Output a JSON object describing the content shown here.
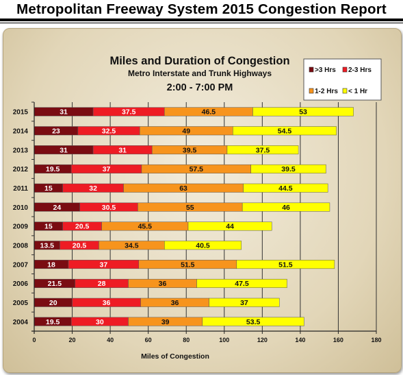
{
  "header": {
    "title": "Metropolitan Freeway System 2015 Congestion Report"
  },
  "chart_data": {
    "type": "bar",
    "orientation": "horizontal",
    "stacked": true,
    "title": "Miles and Duration of Congestion",
    "subtitle": "Metro Interstate and Trunk Highways",
    "subtitle2": "2:00 - 7:00 PM",
    "xlabel": "Miles of Congestion",
    "ylabel": "",
    "xlim": [
      0,
      180
    ],
    "xticks": [
      0,
      20,
      40,
      60,
      80,
      100,
      120,
      140,
      160,
      180
    ],
    "grid": true,
    "legend_placement": "top-right",
    "categories": [
      "2015",
      "2014",
      "2013",
      "2012",
      "2011",
      "2010",
      "2009",
      "2008",
      "2007",
      "2006",
      "2005",
      "2004"
    ],
    "series": [
      {
        "name": ">3 Hrs",
        "color": "#7a0c12",
        "values": [
          31,
          23,
          31,
          19.5,
          15,
          24,
          15,
          13.5,
          18,
          21.5,
          20,
          19.5
        ]
      },
      {
        "name": "2-3 Hrs",
        "color": "#ee1c24",
        "values": [
          37.5,
          32.5,
          31,
          37,
          32,
          30.5,
          20.5,
          20.5,
          37,
          28,
          36,
          30
        ]
      },
      {
        "name": "1-2 Hrs",
        "color": "#f7941d",
        "values": [
          46.5,
          49,
          39.5,
          57.5,
          63,
          55,
          45.5,
          34.5,
          51.5,
          36,
          36,
          39
        ]
      },
      {
        "name": "< 1 Hr",
        "color": "#ffff00",
        "values": [
          53,
          54.5,
          37.5,
          39.5,
          44.5,
          46,
          44,
          40.5,
          51.5,
          47.5,
          37,
          53.5
        ]
      }
    ]
  }
}
